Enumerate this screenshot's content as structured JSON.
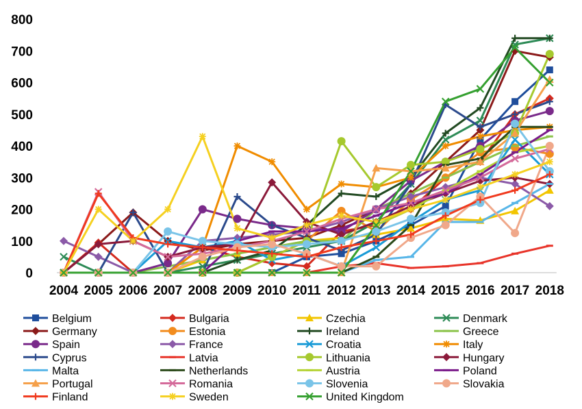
{
  "chart_data": {
    "type": "line",
    "title": "",
    "xlabel": "",
    "ylabel": "",
    "x": [
      "2004",
      "2005",
      "2006",
      "2007",
      "2008",
      "2009",
      "2010",
      "2011",
      "2012",
      "2013",
      "2014",
      "2015",
      "2016",
      "2017",
      "2018"
    ],
    "ylim": [
      0,
      800
    ],
    "yticks": [
      "0",
      "100",
      "200",
      "300",
      "400",
      "500",
      "600",
      "700",
      "800"
    ],
    "grid": false,
    "legend_position": "bottom",
    "series": [
      {
        "name": "Belgium",
        "color": "#1f4e9c",
        "marker": "square",
        "values": [
          0,
          0,
          0,
          0,
          0,
          0,
          0,
          50,
          60,
          100,
          150,
          210,
          420,
          540,
          640
        ]
      },
      {
        "name": "Bulgaria",
        "color": "#d42a1e",
        "marker": "diamond",
        "values": [
          0,
          95,
          0,
          0,
          80,
          50,
          30,
          20,
          130,
          150,
          200,
          300,
          350,
          500,
          550
        ]
      },
      {
        "name": "Czechia",
        "color": "#f2c500",
        "marker": "triangle",
        "values": [
          0,
          0,
          0,
          0,
          40,
          60,
          80,
          100,
          110,
          120,
          140,
          170,
          165,
          195,
          260
        ]
      },
      {
        "name": "Denmark",
        "color": "#2e8b57",
        "marker": "x",
        "values": [
          50,
          0,
          0,
          0,
          20,
          40,
          60,
          80,
          100,
          160,
          280,
          420,
          480,
          720,
          740
        ]
      },
      {
        "name": "Germany",
        "color": "#8b1a1a",
        "marker": "diamond",
        "values": [
          0,
          90,
          190,
          100,
          70,
          90,
          100,
          110,
          150,
          200,
          250,
          350,
          450,
          700,
          680
        ]
      },
      {
        "name": "Estonia",
        "color": "#f28c1e",
        "marker": "circle",
        "values": [
          0,
          0,
          0,
          0,
          0,
          0,
          50,
          100,
          195,
          130,
          230,
          300,
          380,
          395,
          375
        ]
      },
      {
        "name": "Ireland",
        "color": "#224a22",
        "marker": "plus",
        "values": [
          0,
          0,
          0,
          0,
          0,
          40,
          70,
          150,
          250,
          240,
          300,
          440,
          520,
          740,
          740
        ]
      },
      {
        "name": "Greece",
        "color": "#8bc34a",
        "marker": "dash",
        "values": [
          0,
          0,
          0,
          20,
          40,
          60,
          80,
          100,
          100,
          200,
          250,
          300,
          350,
          400,
          430
        ]
      },
      {
        "name": "Spain",
        "color": "#7a2a8a",
        "marker": "circle",
        "values": [
          0,
          0,
          0,
          30,
          200,
          170,
          150,
          140,
          130,
          200,
          290,
          350,
          400,
          480,
          510
        ]
      },
      {
        "name": "France",
        "color": "#8b5aa8",
        "marker": "diamond",
        "values": [
          100,
          50,
          0,
          0,
          100,
          110,
          120,
          130,
          160,
          200,
          240,
          270,
          300,
          280,
          210
        ]
      },
      {
        "name": "Croatia",
        "color": "#1a9bd7",
        "marker": "x",
        "values": [
          0,
          0,
          0,
          100,
          80,
          100,
          40,
          60,
          20,
          80,
          160,
          230,
          260,
          420,
          310
        ]
      },
      {
        "name": "Italy",
        "color": "#f08c00",
        "marker": "star",
        "values": [
          0,
          0,
          0,
          0,
          80,
          400,
          350,
          200,
          280,
          270,
          300,
          400,
          430,
          450,
          460
        ]
      },
      {
        "name": "Cyprus",
        "color": "#2b4a8c",
        "marker": "plus",
        "values": [
          0,
          0,
          190,
          0,
          0,
          240,
          150,
          110,
          70,
          120,
          280,
          530,
          460,
          500,
          540
        ]
      },
      {
        "name": "Latvia",
        "color": "#e8342a",
        "marker": "dash",
        "values": [
          0,
          0,
          0,
          0,
          0,
          0,
          0,
          0,
          20,
          30,
          15,
          20,
          30,
          60,
          85
        ]
      },
      {
        "name": "Lithuania",
        "color": "#a6c92e",
        "marker": "circle",
        "values": [
          0,
          0,
          0,
          0,
          0,
          0,
          50,
          100,
          415,
          270,
          340,
          350,
          390,
          440,
          690
        ]
      },
      {
        "name": "Hungary",
        "color": "#8b1a3a",
        "marker": "diamond",
        "values": [
          0,
          90,
          100,
          50,
          80,
          90,
          285,
          160,
          120,
          160,
          210,
          250,
          290,
          300,
          280
        ]
      },
      {
        "name": "Malta",
        "color": "#58b6e8",
        "marker": "dash",
        "values": [
          0,
          0,
          0,
          0,
          0,
          0,
          0,
          0,
          0,
          40,
          50,
          160,
          160,
          220,
          280
        ]
      },
      {
        "name": "Netherlands",
        "color": "#2b4a1a",
        "marker": "dash",
        "values": [
          0,
          0,
          0,
          0,
          0,
          0,
          0,
          0,
          0,
          50,
          150,
          340,
          360,
          460,
          460
        ]
      },
      {
        "name": "Austria",
        "color": "#b5d334",
        "marker": "dash",
        "values": [
          0,
          0,
          0,
          0,
          0,
          0,
          0,
          0,
          0,
          150,
          200,
          260,
          320,
          380,
          400
        ]
      },
      {
        "name": "Poland",
        "color": "#7a1a8a",
        "marker": "dash",
        "values": [
          0,
          0,
          0,
          0,
          0,
          100,
          130,
          130,
          140,
          180,
          220,
          250,
          310,
          380,
          450
        ]
      },
      {
        "name": "Portugal",
        "color": "#f5a04a",
        "marker": "triangle",
        "values": [
          0,
          0,
          0,
          0,
          0,
          0,
          0,
          0,
          0,
          330,
          320,
          330,
          350,
          440,
          610
        ]
      },
      {
        "name": "Romania",
        "color": "#d46a9a",
        "marker": "x",
        "values": [
          0,
          255,
          100,
          50,
          60,
          80,
          100,
          130,
          170,
          200,
          220,
          260,
          300,
          360,
          390
        ]
      },
      {
        "name": "Slovenia",
        "color": "#7ac4e8",
        "marker": "circle",
        "values": [
          0,
          0,
          0,
          130,
          100,
          90,
          80,
          90,
          100,
          130,
          170,
          190,
          220,
          470,
          320
        ]
      },
      {
        "name": "Slovakia",
        "color": "#f0a88a",
        "marker": "circle",
        "values": [
          0,
          0,
          0,
          0,
          50,
          80,
          90,
          60,
          20,
          20,
          110,
          150,
          240,
          125,
          400
        ]
      },
      {
        "name": "Finland",
        "color": "#f03a1e",
        "marker": "plus",
        "values": [
          0,
          250,
          110,
          90,
          80,
          70,
          60,
          50,
          80,
          100,
          120,
          180,
          230,
          260,
          310
        ]
      },
      {
        "name": "Sweden",
        "color": "#f5d020",
        "marker": "star",
        "values": [
          0,
          200,
          100,
          200,
          430,
          140,
          110,
          150,
          180,
          160,
          200,
          230,
          270,
          310,
          350
        ]
      },
      {
        "name": "United Kingdom",
        "color": "#35a030",
        "marker": "x",
        "values": [
          0,
          0,
          0,
          0,
          0,
          0,
          0,
          0,
          0,
          150,
          320,
          540,
          580,
          710,
          600
        ]
      }
    ]
  }
}
